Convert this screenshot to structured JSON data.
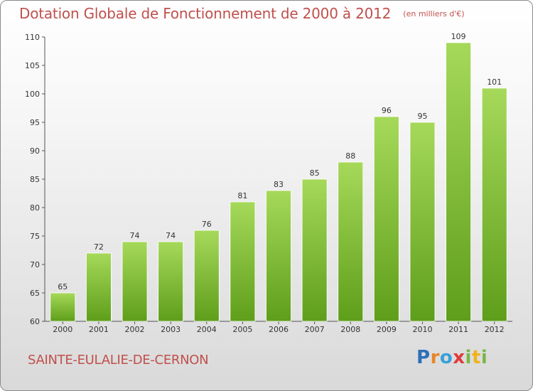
{
  "title": "Dotation Globale de Fonctionnement de 2000 à 2012",
  "unit": "(en milliers d'€)",
  "commune": "SAINTE-EULALIE-DE-CERNON",
  "logo": {
    "text": "Proxiti",
    "letters": [
      {
        "ch": "P",
        "color": "#2e6fb7"
      },
      {
        "ch": "r",
        "color": "#e8862a"
      },
      {
        "ch": "o",
        "color": "#3aa0d8"
      },
      {
        "ch": "x",
        "color": "#e03a3a"
      },
      {
        "ch": "i",
        "color": "#7ab648"
      },
      {
        "ch": "t",
        "color": "#f2b21b"
      },
      {
        "ch": "i",
        "color": "#7ab648"
      }
    ]
  },
  "colors": {
    "title": "#c0504d",
    "bar_light": "#a6d95a",
    "bar_dark": "#5e9e1a"
  },
  "chart_data": {
    "type": "bar",
    "title": "Dotation Globale de Fonctionnement de 2000 à 2012",
    "subtitle": "(en milliers d'€)",
    "categories": [
      "2000",
      "2001",
      "2002",
      "2003",
      "2004",
      "2005",
      "2006",
      "2007",
      "2008",
      "2009",
      "2010",
      "2011",
      "2012"
    ],
    "values": [
      65,
      72,
      74,
      74,
      76,
      81,
      83,
      85,
      88,
      96,
      95,
      109,
      101
    ],
    "data_labels": [
      "65",
      "72",
      "74",
      "74",
      "76",
      "81",
      "83",
      "85",
      "88",
      "96",
      "95",
      "109",
      "101"
    ],
    "ylim": [
      60,
      110
    ],
    "yticks": [
      60,
      65,
      70,
      75,
      80,
      85,
      90,
      95,
      100,
      105,
      110
    ],
    "xlabel": "",
    "ylabel": "",
    "grid": false,
    "legend": "none"
  }
}
